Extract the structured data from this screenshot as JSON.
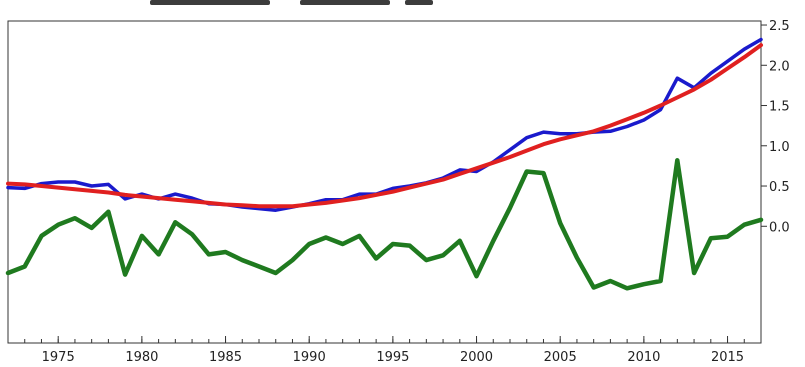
{
  "chart_data": {
    "type": "line",
    "x": [
      1972,
      1973,
      1974,
      1975,
      1976,
      1977,
      1978,
      1979,
      1980,
      1981,
      1982,
      1983,
      1984,
      1985,
      1986,
      1987,
      1988,
      1989,
      1990,
      1991,
      1992,
      1993,
      1994,
      1995,
      1996,
      1997,
      1998,
      1999,
      2000,
      2001,
      2002,
      2003,
      2004,
      2005,
      2006,
      2007,
      2008,
      2009,
      2010,
      2011,
      2012,
      2013,
      2014,
      2015,
      2016,
      2017
    ],
    "xlim": [
      1972,
      2017
    ],
    "xticks": [
      1975,
      1980,
      1985,
      1990,
      1995,
      2000,
      2005,
      2010,
      2015
    ],
    "y_right_ticks": [
      0.0,
      0.5,
      1.0,
      1.5,
      2.0,
      2.5
    ],
    "ylim_right": [
      -1.45,
      2.55
    ],
    "ylim_left": [
      -1.45,
      2.55
    ],
    "grid": false,
    "series": [
      {
        "color": "#1a1acc",
        "axis": "right",
        "values": [
          0.48,
          0.47,
          0.53,
          0.55,
          0.55,
          0.5,
          0.52,
          0.34,
          0.4,
          0.34,
          0.4,
          0.35,
          0.28,
          0.27,
          0.24,
          0.22,
          0.2,
          0.24,
          0.28,
          0.33,
          0.33,
          0.4,
          0.4,
          0.47,
          0.5,
          0.54,
          0.6,
          0.7,
          0.68,
          0.8,
          0.95,
          1.1,
          1.17,
          1.15,
          1.15,
          1.17,
          1.18,
          1.24,
          1.32,
          1.45,
          1.84,
          1.72,
          1.9,
          2.05,
          2.2,
          2.32
        ]
      },
      {
        "color": "#e02020",
        "axis": "right",
        "values": [
          0.53,
          0.52,
          0.5,
          0.48,
          0.46,
          0.44,
          0.42,
          0.39,
          0.37,
          0.35,
          0.33,
          0.31,
          0.29,
          0.27,
          0.26,
          0.25,
          0.25,
          0.25,
          0.27,
          0.29,
          0.32,
          0.35,
          0.39,
          0.43,
          0.48,
          0.53,
          0.58,
          0.65,
          0.72,
          0.79,
          0.86,
          0.94,
          1.02,
          1.08,
          1.13,
          1.18,
          1.25,
          1.33,
          1.41,
          1.5,
          1.6,
          1.7,
          1.82,
          1.96,
          2.1,
          2.25
        ]
      },
      {
        "color": "#1f7a1f",
        "axis": "left",
        "values": [
          -0.58,
          -0.5,
          -0.12,
          0.02,
          0.1,
          -0.02,
          0.18,
          -0.6,
          -0.12,
          -0.35,
          0.05,
          -0.1,
          -0.35,
          -0.32,
          -0.42,
          -0.5,
          -0.58,
          -0.42,
          -0.22,
          -0.14,
          -0.22,
          -0.12,
          -0.4,
          -0.22,
          -0.24,
          -0.42,
          -0.36,
          -0.18,
          -0.62,
          -0.18,
          0.23,
          0.68,
          0.66,
          0.04,
          -0.39,
          -0.76,
          -0.68,
          -0.77,
          -0.72,
          -0.68,
          0.82,
          -0.58,
          -0.15,
          -0.13,
          0.02,
          0.08
        ]
      }
    ]
  }
}
